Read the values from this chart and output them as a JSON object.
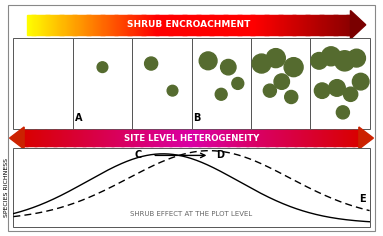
{
  "fig_width": 3.83,
  "fig_height": 2.36,
  "dpi": 100,
  "bg_color": "#ffffff",
  "shrub_color": "#556b2f",
  "top_arrow_label": "SHRUB ENCROACHMENT",
  "bottom_arrow_label": "SITE LEVEL HETEROGENEITY",
  "ylabel": "SPECIES RICHNESS",
  "plot_label": "SHRUB EFFECT AT THE PLOT LEVEL",
  "arrow_label_color": "#ffffff",
  "num_panels": 6,
  "shrub_groups": [
    [],
    [
      [
        0.5,
        0.68,
        0.09
      ]
    ],
    [
      [
        0.32,
        0.72,
        0.11
      ],
      [
        0.68,
        0.42,
        0.09
      ]
    ],
    [
      [
        0.28,
        0.75,
        0.15
      ],
      [
        0.62,
        0.68,
        0.13
      ],
      [
        0.5,
        0.38,
        0.1
      ],
      [
        0.78,
        0.5,
        0.1
      ]
    ],
    [
      [
        0.18,
        0.72,
        0.16
      ],
      [
        0.42,
        0.78,
        0.16
      ],
      [
        0.52,
        0.52,
        0.13
      ],
      [
        0.72,
        0.68,
        0.16
      ],
      [
        0.32,
        0.42,
        0.11
      ],
      [
        0.68,
        0.35,
        0.11
      ]
    ],
    [
      [
        0.15,
        0.75,
        0.14
      ],
      [
        0.35,
        0.8,
        0.16
      ],
      [
        0.58,
        0.75,
        0.17
      ],
      [
        0.78,
        0.78,
        0.15
      ],
      [
        0.2,
        0.42,
        0.13
      ],
      [
        0.45,
        0.45,
        0.14
      ],
      [
        0.68,
        0.38,
        0.12
      ],
      [
        0.85,
        0.52,
        0.14
      ],
      [
        0.55,
        0.18,
        0.11
      ]
    ]
  ]
}
